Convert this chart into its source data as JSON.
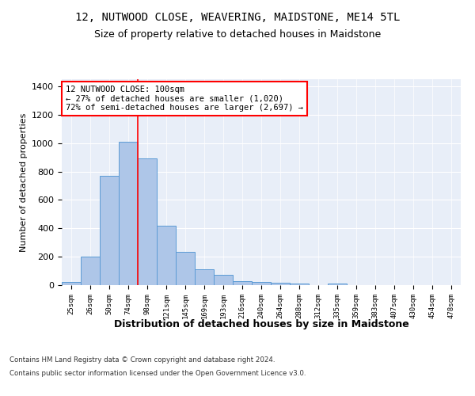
{
  "title": "12, NUTWOOD CLOSE, WEAVERING, MAIDSTONE, ME14 5TL",
  "subtitle": "Size of property relative to detached houses in Maidstone",
  "xlabel": "Distribution of detached houses by size in Maidstone",
  "ylabel": "Number of detached properties",
  "bar_labels": [
    "25sqm",
    "26sqm",
    "50sqm",
    "74sqm",
    "98sqm",
    "121sqm",
    "145sqm",
    "169sqm",
    "193sqm",
    "216sqm",
    "240sqm",
    "264sqm",
    "288sqm",
    "312sqm",
    "335sqm",
    "359sqm",
    "383sqm",
    "407sqm",
    "430sqm",
    "454sqm",
    "478sqm"
  ],
  "bar_values": [
    22,
    200,
    770,
    1010,
    890,
    420,
    235,
    110,
    70,
    27,
    22,
    18,
    10,
    0,
    12,
    0,
    0,
    0,
    0,
    0,
    0
  ],
  "bar_color": "#aec6e8",
  "bar_edge_color": "#5b9bd5",
  "vline_x_index": 4,
  "vline_color": "red",
  "annotation_text": "12 NUTWOOD CLOSE: 100sqm\n← 27% of detached houses are smaller (1,020)\n72% of semi-detached houses are larger (2,697) →",
  "annotation_box_color": "white",
  "annotation_box_edge": "red",
  "ylim": [
    0,
    1450
  ],
  "yticks": [
    0,
    200,
    400,
    600,
    800,
    1000,
    1200,
    1400
  ],
  "plot_bg_color": "#e8eef8",
  "footer_line1": "Contains HM Land Registry data © Crown copyright and database right 2024.",
  "footer_line2": "Contains public sector information licensed under the Open Government Licence v3.0.",
  "title_fontsize": 10,
  "subtitle_fontsize": 9,
  "xlabel_fontsize": 9,
  "ylabel_fontsize": 8
}
